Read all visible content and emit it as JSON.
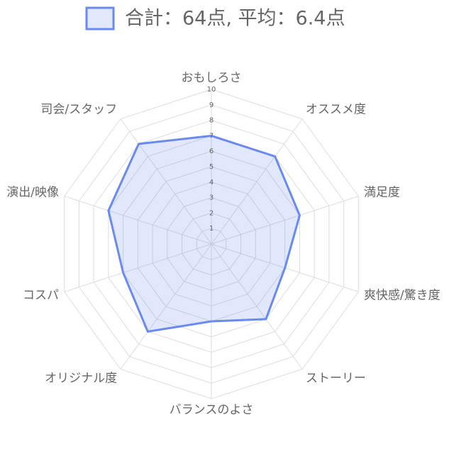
{
  "chart_data": {
    "type": "radar",
    "categories": [
      "おもしろさ",
      "オススメ度",
      "満足度",
      "爽快感/驚き度",
      "ストーリー",
      "バランスのよさ",
      "オリジナル度",
      "コスパ",
      "演出/映像",
      "司会/スタッフ"
    ],
    "series": [
      {
        "name": "合計：64点, 平均：6.4点",
        "color": "#6b8af0",
        "values": [
          7,
          7,
          6,
          5,
          6,
          5,
          7,
          6,
          7,
          8
        ]
      }
    ],
    "rlim": [
      0,
      10
    ],
    "rticks": [
      1,
      2,
      3,
      4,
      5,
      6,
      7,
      8,
      9,
      10
    ],
    "grid": true,
    "legend": "top"
  }
}
